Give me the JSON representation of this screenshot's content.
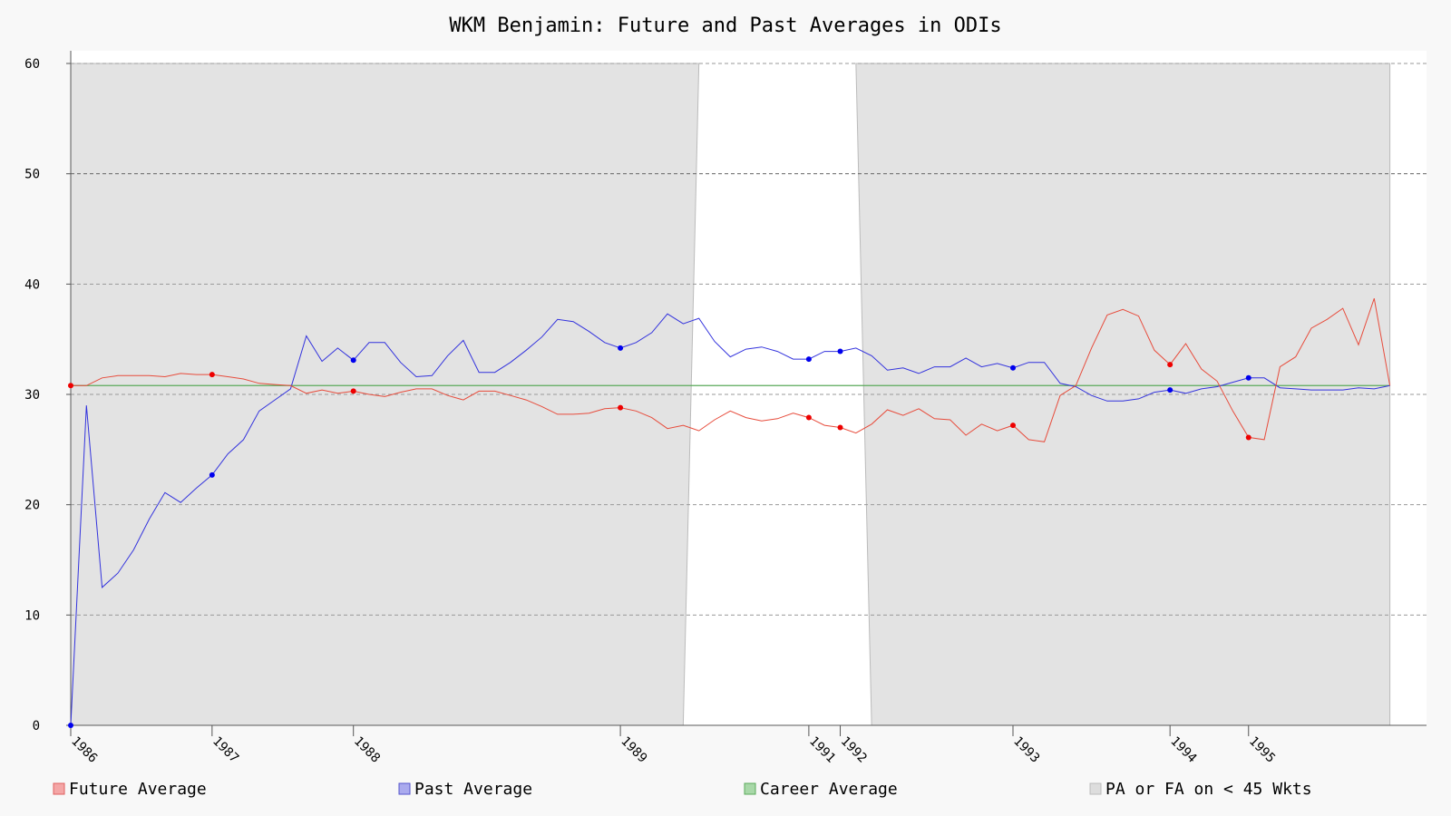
{
  "chart_data": {
    "type": "line",
    "title": "WKM Benjamin: Future and Past Averages in ODIs",
    "xlabel": "",
    "ylabel": "",
    "ylim": [
      0,
      60
    ],
    "y_ticks": [
      0,
      10,
      20,
      30,
      40,
      50,
      60
    ],
    "grid": true,
    "legend_position": "bottom",
    "x_tick_labels": [
      {
        "label": "1986",
        "match": 1
      },
      {
        "label": "1987",
        "match": 10
      },
      {
        "label": "1988",
        "match": 19
      },
      {
        "label": "1989",
        "match": 36
      },
      {
        "label": "1991",
        "match": 48
      },
      {
        "label": "1992",
        "match": 50
      },
      {
        "label": "1993",
        "match": 61
      },
      {
        "label": "1994",
        "match": 71
      },
      {
        "label": "1995",
        "match": 76
      }
    ],
    "x_range": [
      1,
      85.6
    ],
    "series": [
      {
        "name": "Future Average",
        "color": "#e74c3c",
        "values": [
          30.8,
          30.8,
          31.5,
          31.7,
          31.7,
          31.7,
          31.6,
          31.9,
          31.8,
          31.8,
          31.6,
          31.4,
          31.0,
          30.9,
          30.8,
          30.1,
          30.4,
          30.1,
          30.3,
          30.0,
          29.8,
          30.2,
          30.5,
          30.5,
          29.9,
          29.5,
          30.3,
          30.3,
          29.9,
          29.5,
          28.9,
          28.2,
          28.2,
          28.3,
          28.7,
          28.8,
          28.5,
          27.9,
          26.9,
          27.2,
          26.7,
          27.7,
          28.5,
          27.9,
          27.6,
          27.8,
          28.3,
          27.9,
          27.2,
          27.0,
          26.5,
          27.3,
          28.6,
          28.1,
          28.7,
          27.8,
          27.7,
          26.3,
          27.3,
          26.7,
          27.2,
          25.9,
          25.7,
          29.9,
          30.8,
          34.2,
          37.2,
          37.7,
          37.1,
          34.0,
          32.7,
          34.6,
          32.3,
          31.2,
          28.5,
          26.1,
          25.9,
          32.5,
          33.4,
          36.0,
          36.8,
          37.8,
          34.5,
          38.7,
          30.8
        ],
        "markers": [
          1,
          10,
          19,
          36,
          48,
          50,
          61,
          71,
          76
        ]
      },
      {
        "name": "Past Average",
        "color": "#3333dd",
        "values": [
          0.0,
          29.0,
          12.5,
          13.8,
          15.9,
          18.7,
          21.1,
          20.2,
          21.5,
          22.7,
          24.6,
          25.9,
          28.5,
          29.5,
          30.5,
          35.3,
          33.0,
          34.2,
          33.1,
          34.7,
          34.7,
          32.9,
          31.6,
          31.7,
          33.5,
          34.9,
          32.0,
          32.0,
          32.9,
          34.0,
          35.2,
          36.8,
          36.6,
          35.7,
          34.7,
          34.2,
          34.7,
          35.6,
          37.3,
          36.4,
          36.9,
          34.8,
          33.4,
          34.1,
          34.3,
          33.9,
          33.2,
          33.2,
          33.9,
          33.9,
          34.2,
          33.5,
          32.2,
          32.4,
          31.9,
          32.5,
          32.5,
          33.3,
          32.5,
          32.8,
          32.4,
          32.9,
          32.9,
          31.0,
          30.7,
          29.9,
          29.4,
          29.4,
          29.6,
          30.2,
          30.4,
          30.1,
          30.5,
          30.7,
          31.1,
          31.5,
          31.5,
          30.6,
          30.5,
          30.4,
          30.4,
          30.4,
          30.6,
          30.5,
          30.8
        ],
        "markers": [
          1,
          10,
          19,
          36,
          48,
          50,
          61,
          71,
          76
        ]
      },
      {
        "name": "Career Average",
        "color": "#5aaa5a",
        "values": [
          30.8,
          30.8
        ]
      }
    ],
    "shaded_region": {
      "name": "PA or FA on < 45 Wkts",
      "color": "#e3e3e3",
      "clear_ranges": [
        [
          41,
          51
        ]
      ]
    }
  },
  "legend": [
    {
      "label": "Future Average",
      "fill": "#f4a6a6",
      "stroke": "#e06060"
    },
    {
      "label": "Past Average",
      "fill": "#aaaaee",
      "stroke": "#5555cc"
    },
    {
      "label": "Career Average",
      "fill": "#a8d8a8",
      "stroke": "#5aaa5a"
    },
    {
      "label": "PA or FA on < 45 Wkts",
      "fill": "#dddddd",
      "stroke": "#bbbbbb"
    }
  ]
}
